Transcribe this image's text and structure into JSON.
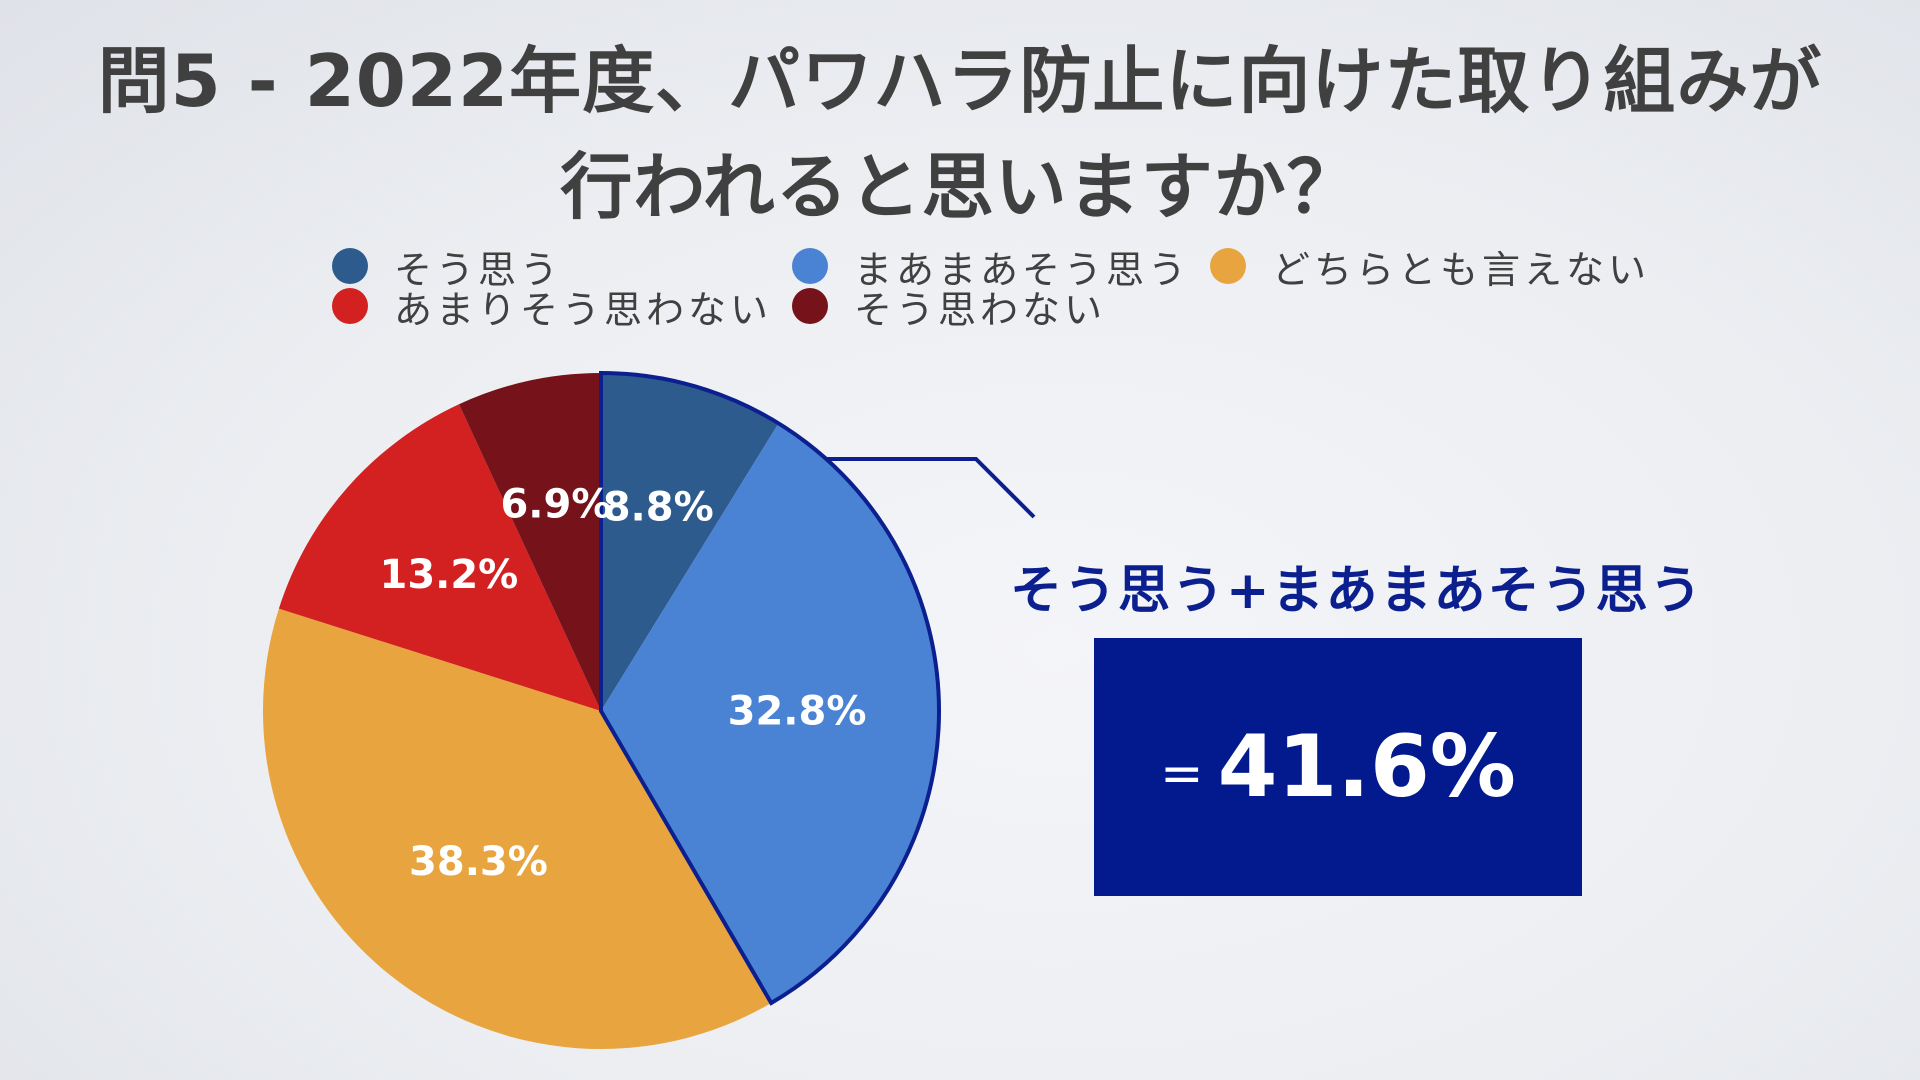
{
  "title_line1": "問5 - 2022年度、パワハラ防止に向けた取り組みが",
  "title_line2": "行われると思いますか？",
  "callout": {
    "heading": "そう思う+まあまあそう思う",
    "equals": "=",
    "value": "41.6%"
  },
  "chart_data": {
    "type": "pie",
    "title": "問5 - 2022年度、パワハラ防止に向けた取り組みが行われると思いますか？",
    "legend_position": "top",
    "slices": [
      {
        "label": "そう思う",
        "value": 8.8,
        "value_label": "8.8%",
        "color": "#2e5b8e"
      },
      {
        "label": "まあまあそう思う",
        "value": 32.8,
        "value_label": "32.8%",
        "color": "#4a82d4"
      },
      {
        "label": "どちらとも言えない",
        "value": 38.3,
        "value_label": "38.3%",
        "color": "#e8a43f"
      },
      {
        "label": "あまりそう思わない",
        "value": 13.2,
        "value_label": "13.2%",
        "color": "#d32020"
      },
      {
        "label": "そう思わない",
        "value": 6.9,
        "value_label": "6.9%",
        "color": "#76121a"
      }
    ],
    "highlight_color": "#0b1f8f"
  }
}
